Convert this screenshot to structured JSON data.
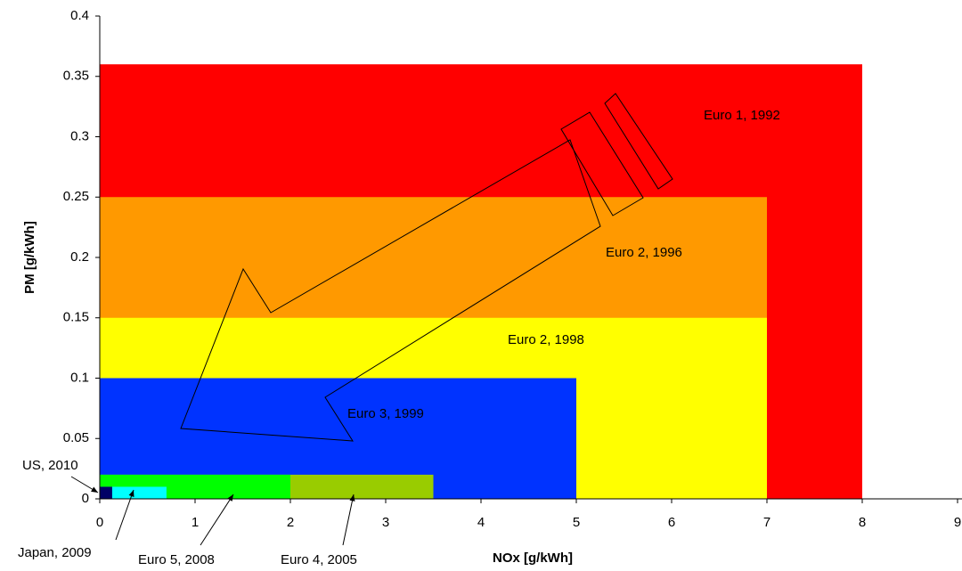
{
  "chart_data": {
    "type": "nested-rect",
    "x_label": "NOx [g/kWh]",
    "y_label": "PM [g/kWh]",
    "xlim": [
      0,
      9
    ],
    "ylim": [
      0,
      0.4
    ],
    "xticks": [
      0,
      1,
      2,
      3,
      4,
      5,
      6,
      7,
      8,
      9
    ],
    "yticks": [
      0,
      0.05,
      0.1,
      0.15,
      0.2,
      0.25,
      0.3,
      0.35,
      0.4
    ],
    "series": [
      {
        "name": "Euro 1, 1992",
        "color": "#ff0000",
        "x": 8,
        "y": 0.36
      },
      {
        "name": "Euro 2, 1996",
        "color": "#ff9900",
        "x": 7,
        "y": 0.25
      },
      {
        "name": "Euro 2, 1998",
        "color": "#ffff00",
        "x": 7,
        "y": 0.15
      },
      {
        "name": "Euro 3, 1999",
        "color": "#0033ff",
        "x": 5,
        "y": 0.1
      },
      {
        "name": "Euro 4, 2005",
        "color": "#99cc00",
        "x": 3.5,
        "y": 0.02
      },
      {
        "name": "Euro 5, 2008",
        "color": "#00ff00",
        "x": 2,
        "y": 0.02
      },
      {
        "name": "Japan, 2009",
        "color": "#00ffff",
        "x": 0.7,
        "y": 0.01
      },
      {
        "name": "US, 2010",
        "color": "#000066",
        "x": 0.13,
        "y": 0.01
      }
    ]
  }
}
